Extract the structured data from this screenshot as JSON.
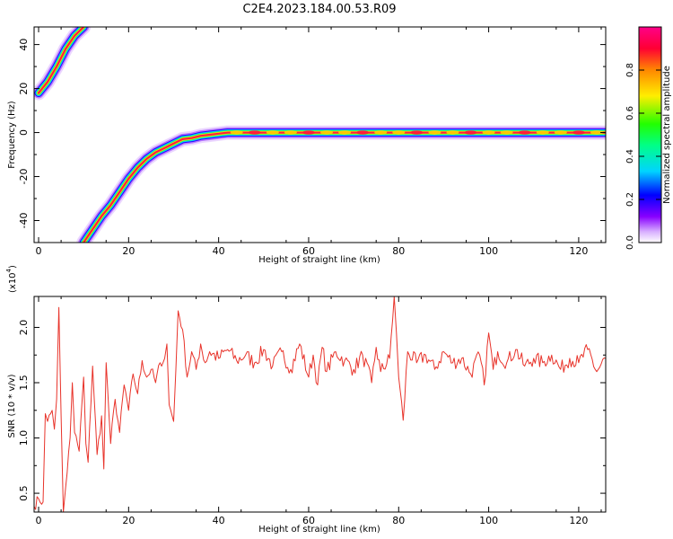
{
  "title": "C2E4.2023.184.00.53.R09",
  "chart_data": [
    {
      "type": "heatmap",
      "xlabel": "Height of straight line (km)",
      "ylabel": "Frequency (Hz)",
      "xlim": [
        -1,
        126
      ],
      "ylim": [
        -50,
        48
      ],
      "x_ticks": [
        0,
        20,
        40,
        60,
        80,
        100,
        120
      ],
      "y_ticks": [
        -40,
        -20,
        0,
        20,
        40
      ],
      "grid": false,
      "colorbar": {
        "label": "Normalized spectral amplitude",
        "ticks": [
          "0.0",
          "0.2",
          "0.4",
          "0.6",
          "0.8"
        ],
        "range": [
          0,
          1
        ],
        "colormap": [
          "#ffffff",
          "#d8b0ff",
          "#8800ff",
          "#0000ff",
          "#00d4ff",
          "#00ff88",
          "#22ff00",
          "#ffee00",
          "#ff8800",
          "#ff0033",
          "#ff0088"
        ]
      },
      "ridge_upper": [
        {
          "x": 0,
          "f": 18
        },
        {
          "x": 2,
          "f": 23
        },
        {
          "x": 4,
          "f": 30
        },
        {
          "x": 6,
          "f": 38
        },
        {
          "x": 8,
          "f": 44
        },
        {
          "x": 10,
          "f": 48
        }
      ],
      "ridge_main": [
        {
          "x": 10,
          "f": -50
        },
        {
          "x": 12,
          "f": -44
        },
        {
          "x": 14,
          "f": -38
        },
        {
          "x": 16,
          "f": -33
        },
        {
          "x": 18,
          "f": -27
        },
        {
          "x": 20,
          "f": -21
        },
        {
          "x": 22,
          "f": -16
        },
        {
          "x": 24,
          "f": -12
        },
        {
          "x": 26,
          "f": -9
        },
        {
          "x": 28,
          "f": -7
        },
        {
          "x": 30,
          "f": -5
        },
        {
          "x": 32,
          "f": -3
        },
        {
          "x": 34,
          "f": -2.5
        },
        {
          "x": 36,
          "f": -1.5
        },
        {
          "x": 38,
          "f": -1
        },
        {
          "x": 40,
          "f": -0.5
        },
        {
          "x": 42,
          "f": 0
        },
        {
          "x": 126,
          "f": 0
        }
      ]
    },
    {
      "type": "line",
      "xlabel": "Height of straight line (km)",
      "ylabel": "SNR (10 * v/v)",
      "y_scale_label": "(x10",
      "y_scale_exp": "4",
      "y_scale_close": ")",
      "xlim": [
        -1,
        126
      ],
      "ylim": [
        0.33,
        2.28
      ],
      "x_ticks": [
        0,
        20,
        40,
        60,
        80,
        100,
        120
      ],
      "y_ticks": [
        0.5,
        1.0,
        1.5,
        2.0
      ],
      "y_tick_labels": [
        "0.5",
        "1.0",
        "1.5",
        "2.0"
      ],
      "color": "#e8332a",
      "series": [
        {
          "points": [
            [
              -1,
              0.38
            ],
            [
              0,
              0.45
            ],
            [
              1,
              0.42
            ],
            [
              1.5,
              1.22
            ],
            [
              2,
              1.15
            ],
            [
              3,
              1.25
            ],
            [
              3.5,
              1.08
            ],
            [
              4,
              1.35
            ],
            [
              4.5,
              2.18
            ],
            [
              5,
              1.2
            ],
            [
              5.5,
              0.33
            ],
            [
              6,
              0.55
            ],
            [
              7,
              1.0
            ],
            [
              7.5,
              1.5
            ],
            [
              8,
              1.05
            ],
            [
              9,
              0.88
            ],
            [
              10,
              1.55
            ],
            [
              10.5,
              0.95
            ],
            [
              11,
              0.78
            ],
            [
              12,
              1.65
            ],
            [
              13,
              0.85
            ],
            [
              14,
              1.2
            ],
            [
              14.5,
              0.72
            ],
            [
              15,
              1.68
            ],
            [
              16,
              0.95
            ],
            [
              17,
              1.35
            ],
            [
              18,
              1.05
            ],
            [
              19,
              1.48
            ],
            [
              20,
              1.25
            ],
            [
              21,
              1.58
            ],
            [
              22,
              1.4
            ],
            [
              23,
              1.7
            ],
            [
              24,
              1.55
            ],
            [
              25,
              1.62
            ],
            [
              26,
              1.5
            ],
            [
              27,
              1.68
            ],
            [
              28,
              1.72
            ],
            [
              28.5,
              1.85
            ],
            [
              29,
              1.3
            ],
            [
              30,
              1.15
            ],
            [
              30.5,
              1.62
            ],
            [
              31,
              2.15
            ],
            [
              32,
              1.98
            ],
            [
              33,
              1.55
            ],
            [
              34,
              1.78
            ],
            [
              35,
              1.62
            ],
            [
              36,
              1.85
            ],
            [
              37,
              1.68
            ],
            [
              38,
              1.78
            ],
            [
              40,
              1.72
            ],
            [
              42,
              1.8
            ],
            [
              44,
              1.7
            ],
            [
              46,
              1.75
            ],
            [
              48,
              1.68
            ],
            [
              50,
              1.8
            ],
            [
              52,
              1.65
            ],
            [
              54,
              1.78
            ],
            [
              56,
              1.62
            ],
            [
              58,
              1.85
            ],
            [
              60,
              1.55
            ],
            [
              61,
              1.75
            ],
            [
              62,
              1.48
            ],
            [
              63,
              1.82
            ],
            [
              64,
              1.6
            ],
            [
              66,
              1.78
            ],
            [
              68,
              1.7
            ],
            [
              70,
              1.62
            ],
            [
              72,
              1.75
            ],
            [
              74,
              1.5
            ],
            [
              75,
              1.82
            ],
            [
              76,
              1.6
            ],
            [
              78,
              1.72
            ],
            [
              79,
              2.28
            ],
            [
              79.5,
              1.95
            ],
            [
              80,
              1.55
            ],
            [
              81,
              1.16
            ],
            [
              82,
              1.78
            ],
            [
              84,
              1.68
            ],
            [
              86,
              1.75
            ],
            [
              88,
              1.62
            ],
            [
              90,
              1.78
            ],
            [
              92,
              1.68
            ],
            [
              94,
              1.72
            ],
            [
              96,
              1.58
            ],
            [
              98,
              1.75
            ],
            [
              99,
              1.48
            ],
            [
              100,
              1.95
            ],
            [
              101,
              1.62
            ],
            [
              102,
              1.78
            ],
            [
              104,
              1.68
            ],
            [
              106,
              1.8
            ],
            [
              108,
              1.65
            ],
            [
              110,
              1.72
            ],
            [
              112,
              1.68
            ],
            [
              114,
              1.75
            ],
            [
              116,
              1.62
            ],
            [
              118,
              1.72
            ],
            [
              120,
              1.68
            ],
            [
              122,
              1.8
            ],
            [
              124,
              1.6
            ],
            [
              126,
              1.72
            ]
          ]
        }
      ]
    }
  ]
}
